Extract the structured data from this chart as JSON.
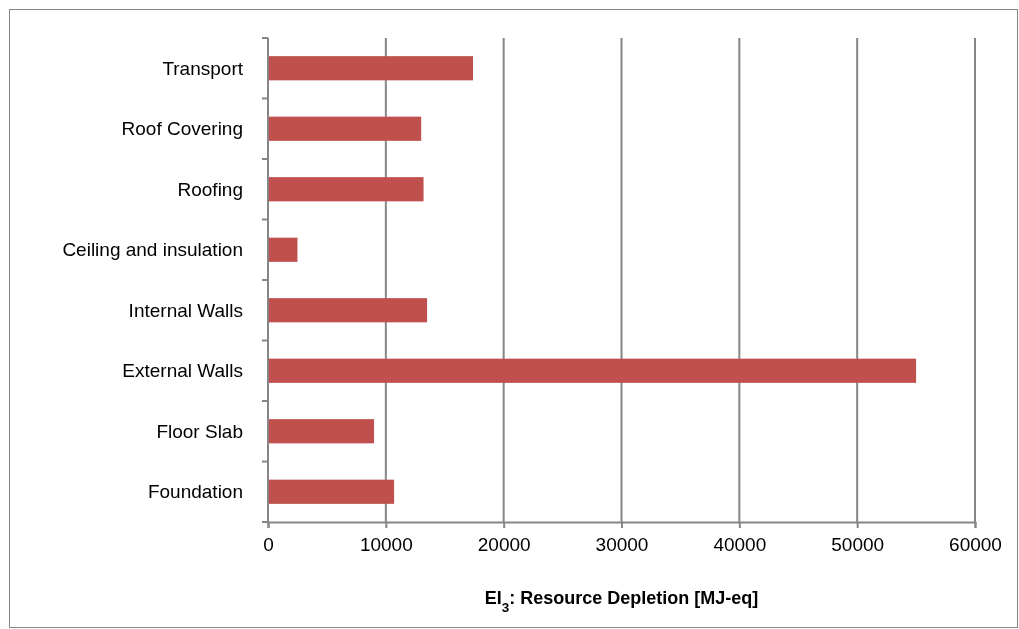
{
  "chart_data": {
    "type": "bar",
    "orientation": "horizontal",
    "xlabel": "EI$_{3}$: Resource Depletion [MJ-eq]",
    "categories": [
      "Transport",
      "Roof Covering",
      "Roofing",
      "Ceiling and insulation",
      "Internal Walls",
      "External Walls",
      "Floor Slab",
      "Foundation"
    ],
    "values": [
      17400,
      13000,
      13200,
      2500,
      13500,
      55000,
      9000,
      10700
    ],
    "color": "#c0504d",
    "xlim": [
      0,
      60000
    ],
    "xticks": [
      0,
      10000,
      20000,
      30000,
      40000,
      50000,
      60000
    ],
    "grid": "x",
    "legend": false
  }
}
